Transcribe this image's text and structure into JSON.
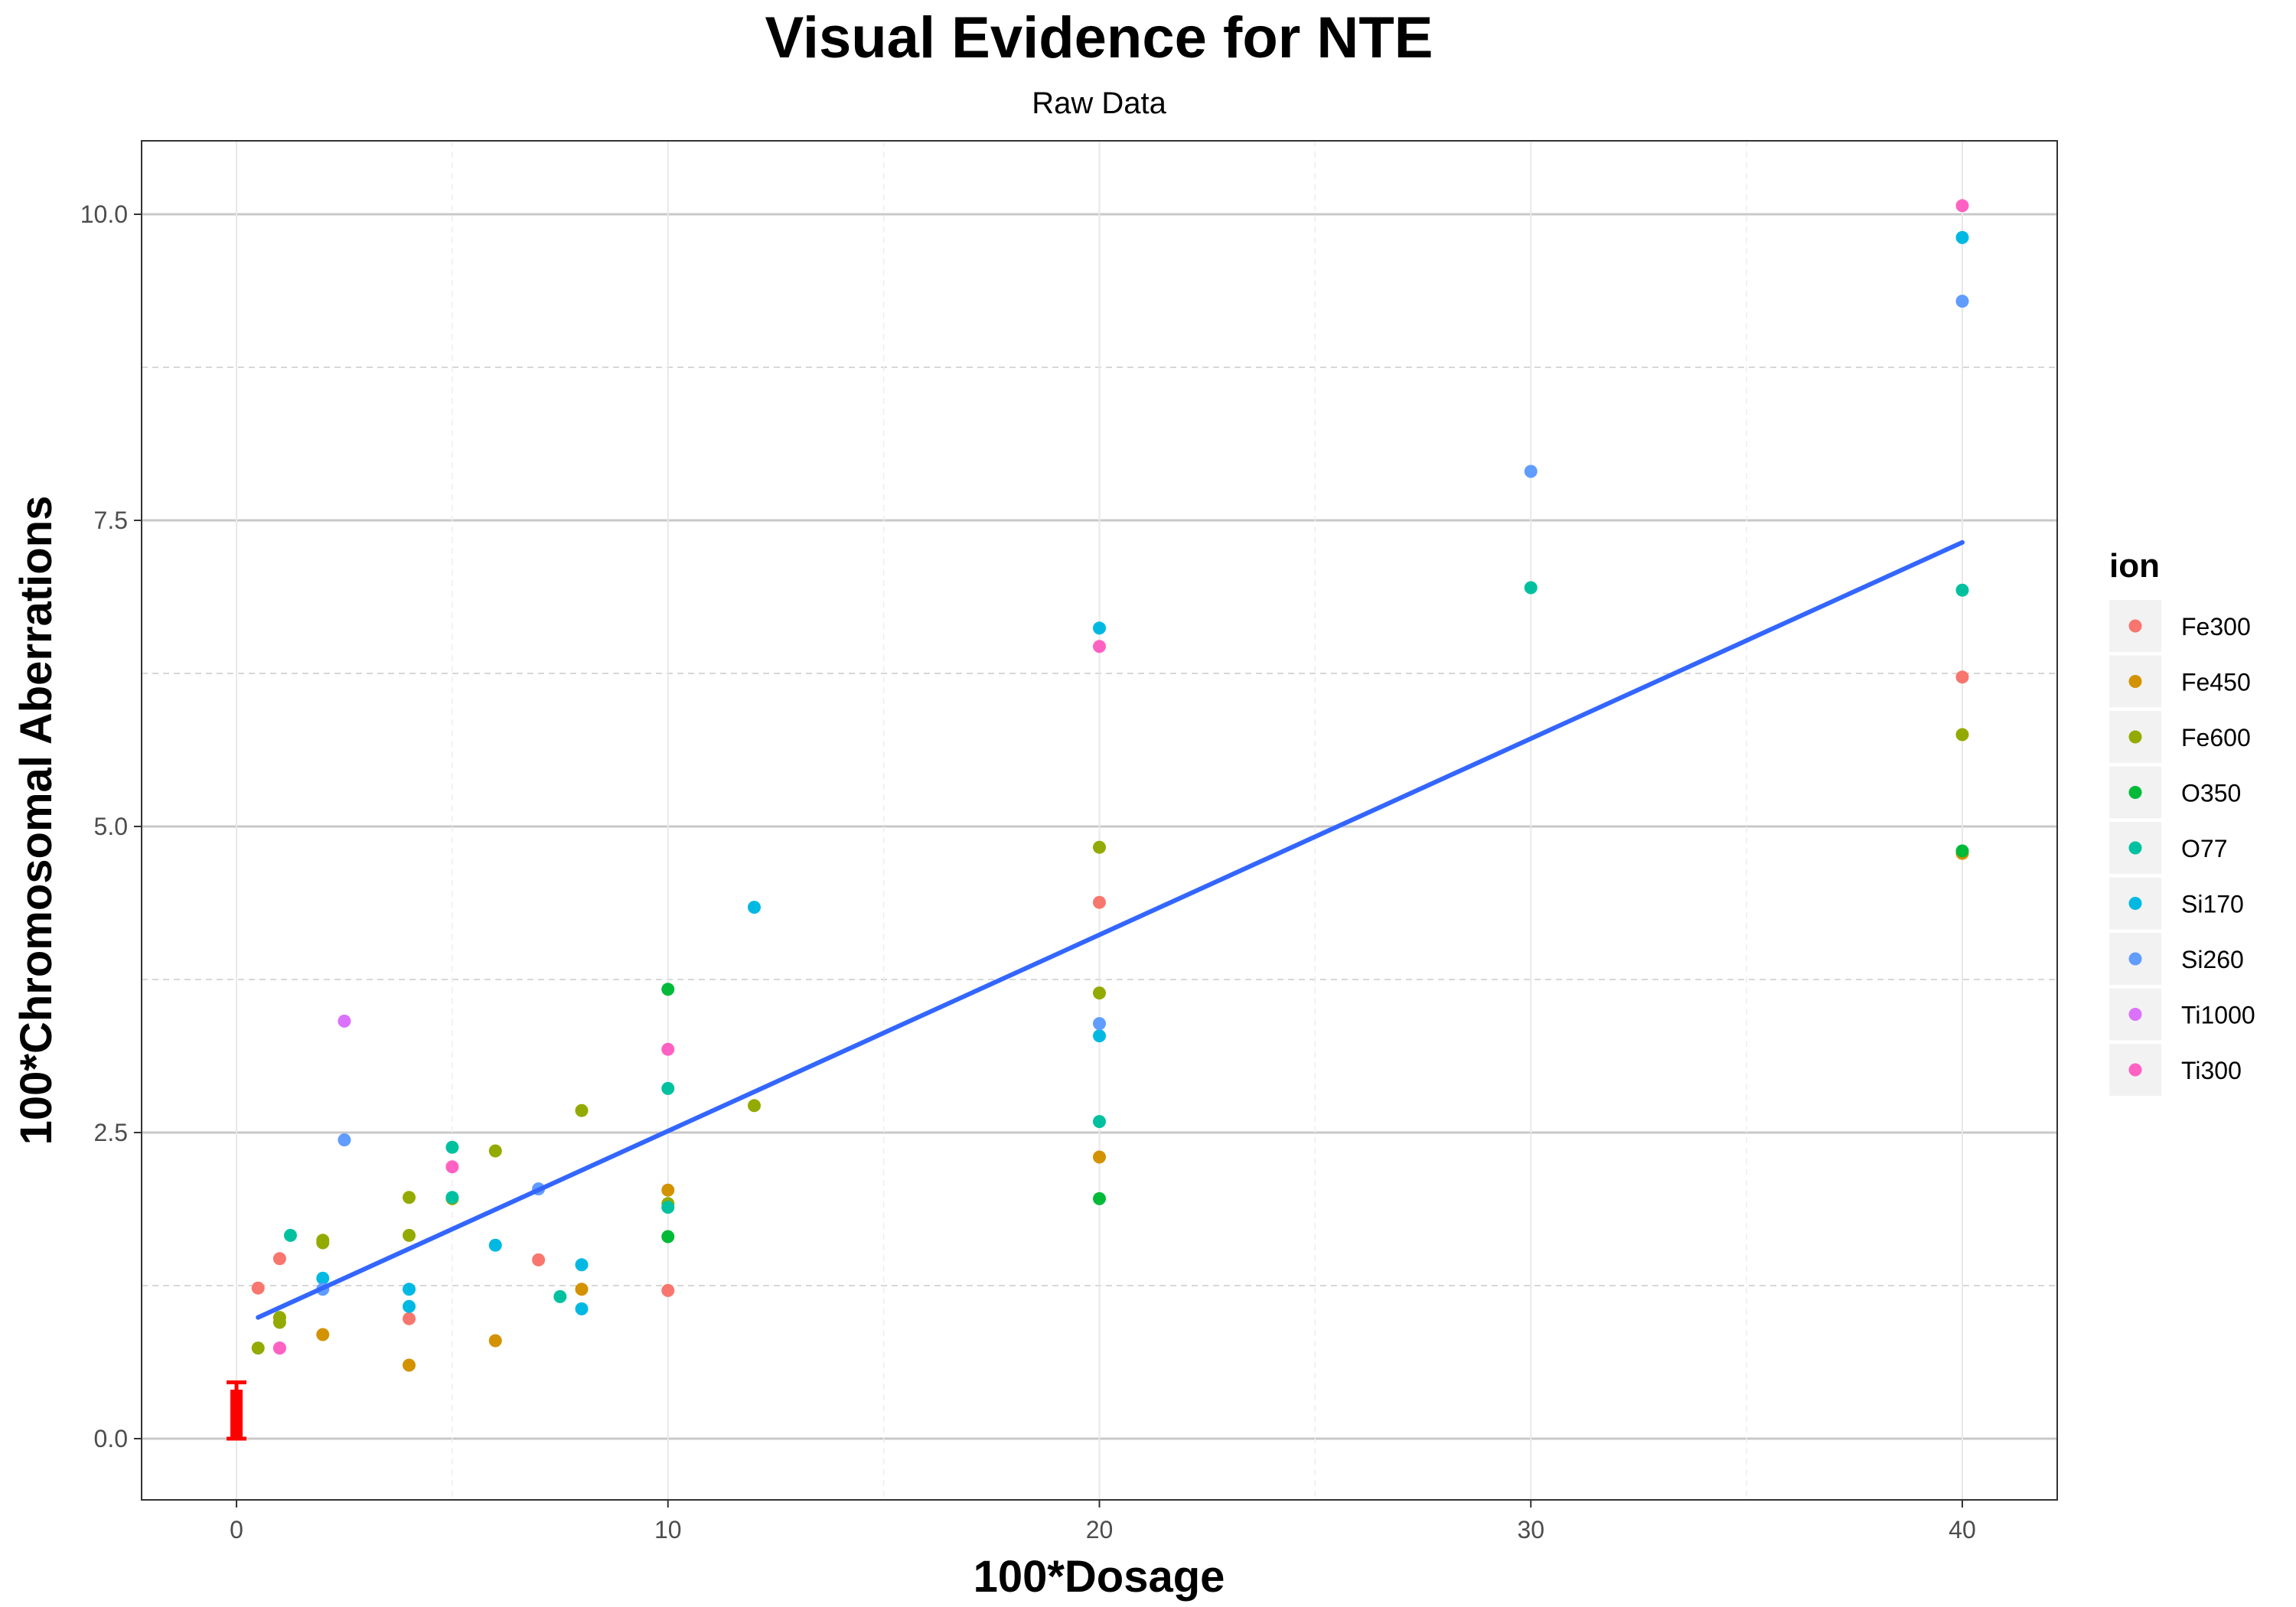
{
  "chart_data": {
    "type": "scatter",
    "title": "Visual Evidence for NTE",
    "subtitle": "Raw Data",
    "xlabel": "100*Dosage",
    "ylabel": "100*Chromosomal Aberrations",
    "xlim": [
      -2.2,
      42.2
    ],
    "ylim": [
      -0.5,
      10.6
    ],
    "x_ticks": [
      0,
      10,
      20,
      30,
      40
    ],
    "x_tick_labels": [
      "0",
      "10",
      "20",
      "30",
      "40"
    ],
    "y_ticks": [
      0,
      2.5,
      5,
      7.5,
      10
    ],
    "y_tick_labels": [
      "0.0",
      "2.5",
      "5.0",
      "7.5",
      "10.0"
    ],
    "grid": true,
    "legend": {
      "title": "ion",
      "placement": "right"
    },
    "series": [
      {
        "name": "Fe300",
        "color": "#F8766D",
        "points": [
          [
            0.5,
            1.23
          ],
          [
            1,
            1.47
          ],
          [
            4,
            0.98
          ],
          [
            7,
            1.46
          ],
          [
            10,
            1.21
          ],
          [
            20,
            4.38
          ],
          [
            40,
            6.22
          ]
        ]
      },
      {
        "name": "Fe450",
        "color": "#D39200",
        "points": [
          [
            2,
            0.85
          ],
          [
            4,
            0.6
          ],
          [
            6,
            0.8
          ],
          [
            8,
            1.22
          ],
          [
            10,
            2.03
          ],
          [
            20,
            2.3
          ],
          [
            40,
            4.78
          ]
        ]
      },
      {
        "name": "Fe600",
        "color": "#93AA00",
        "points": [
          [
            0.5,
            0.74
          ],
          [
            1,
            0.95
          ],
          [
            1,
            0.99
          ],
          [
            2,
            1.6
          ],
          [
            2,
            1.62
          ],
          [
            4,
            1.97
          ],
          [
            4,
            1.66
          ],
          [
            5,
            1.96
          ],
          [
            6,
            2.35
          ],
          [
            8,
            2.68
          ],
          [
            10,
            1.92
          ],
          [
            12,
            2.72
          ],
          [
            20,
            4.83
          ],
          [
            20,
            3.64
          ],
          [
            40,
            5.75
          ]
        ]
      },
      {
        "name": "O350",
        "color": "#00BA38",
        "points": [
          [
            10,
            3.67
          ],
          [
            10,
            1.65
          ],
          [
            20,
            1.96
          ],
          [
            40,
            4.8
          ]
        ]
      },
      {
        "name": "O77",
        "color": "#00C19F",
        "points": [
          [
            1.25,
            1.66
          ],
          [
            5,
            2.38
          ],
          [
            5,
            1.97
          ],
          [
            7.5,
            1.16
          ],
          [
            10,
            2.86
          ],
          [
            10,
            1.89
          ],
          [
            20,
            2.59
          ],
          [
            30,
            6.95
          ],
          [
            40,
            6.93
          ]
        ]
      },
      {
        "name": "Si170",
        "color": "#00B9E3",
        "points": [
          [
            2,
            1.31
          ],
          [
            4,
            1.22
          ],
          [
            4,
            1.08
          ],
          [
            6,
            1.58
          ],
          [
            8,
            1.42
          ],
          [
            8,
            1.06
          ],
          [
            12,
            4.34
          ],
          [
            20,
            6.62
          ],
          [
            20,
            3.29
          ],
          [
            40,
            9.81
          ]
        ]
      },
      {
        "name": "Si260",
        "color": "#619CFF",
        "points": [
          [
            2,
            1.22
          ],
          [
            2.5,
            2.44
          ],
          [
            7,
            2.04
          ],
          [
            20,
            3.39
          ],
          [
            30,
            7.9
          ],
          [
            40,
            9.29
          ]
        ]
      },
      {
        "name": "Ti1000",
        "color": "#DB72FB",
        "points": [
          [
            1,
            0.74
          ],
          [
            2.5,
            3.41
          ]
        ]
      },
      {
        "name": "Ti300",
        "color": "#FF61C3",
        "points": [
          [
            1,
            0.74
          ],
          [
            5,
            2.22
          ],
          [
            10,
            3.18
          ],
          [
            20,
            6.47
          ],
          [
            40,
            10.07
          ]
        ]
      }
    ],
    "fit_line": {
      "color": "#3366FF",
      "x": [
        0.5,
        40
      ],
      "y": [
        0.99,
        7.32
      ]
    },
    "control_bar": {
      "color": "#FF0000",
      "x": 0,
      "value": 0.4,
      "error_upper": 0.46
    }
  }
}
